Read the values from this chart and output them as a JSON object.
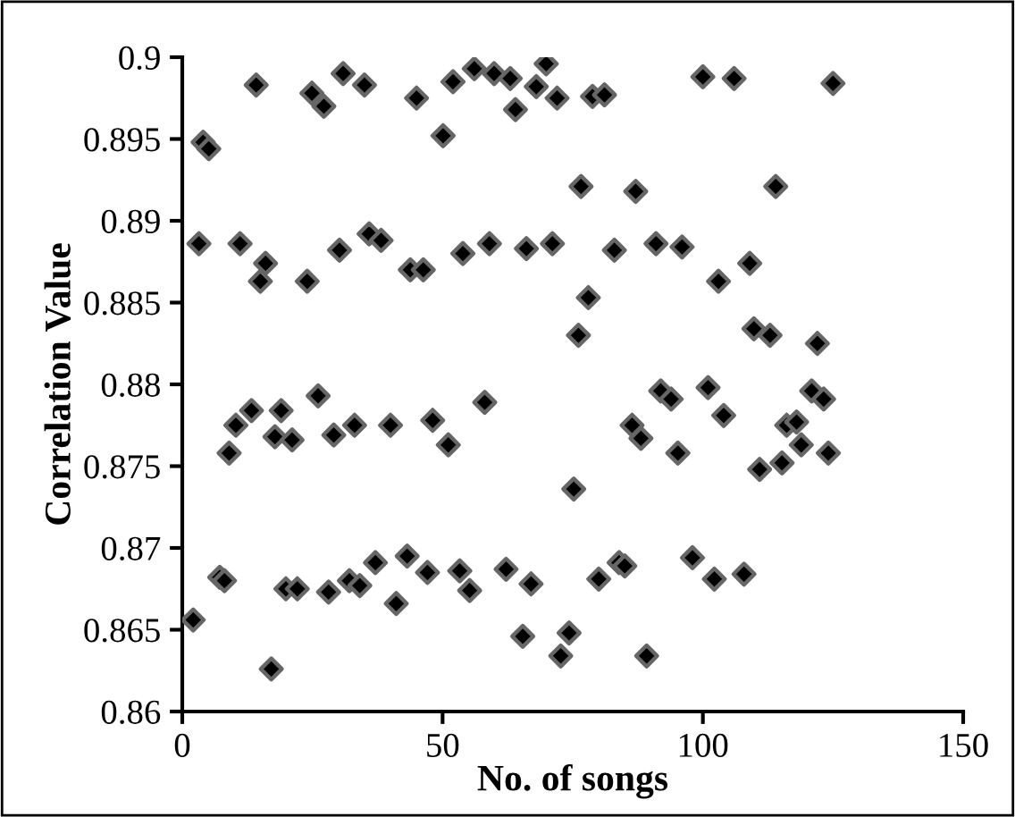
{
  "chart_data": {
    "type": "scatter",
    "xlabel": "No. of songs",
    "ylabel": "Correlation Value",
    "xlim": [
      0,
      150
    ],
    "xticks": [
      0,
      50,
      100,
      150
    ],
    "ylim": [
      0.86,
      0.9
    ],
    "yticks": [
      0.86,
      0.865,
      0.87,
      0.875,
      0.88,
      0.885,
      0.89,
      0.895,
      0.9
    ],
    "grid": false,
    "legend": false,
    "marker": "diamond",
    "series": [
      {
        "color": "#000000",
        "x": [
          4.0,
          5.1,
          14.2,
          24.9,
          27.2,
          30.9,
          35.0,
          45.0,
          50.1,
          52.0,
          56.1,
          59.9,
          63.0,
          64.0,
          68.0,
          69.9,
          72.0,
          78.8,
          81.1,
          100.0,
          106.0,
          125.0,
          3.2,
          11.1,
          16.0,
          15.0,
          24.0,
          30.2,
          35.9,
          38.2,
          43.8,
          46.3,
          53.9,
          59.0,
          66.1,
          71.1,
          76.6,
          87.1,
          114.0,
          83.0,
          91.0,
          96.0,
          109.0,
          103.0,
          78.0,
          76.1,
          109.8,
          112.9,
          122.0,
          26.1,
          13.3,
          19.0,
          58.1,
          91.9,
          93.9,
          101.0,
          120.9,
          123.2,
          104.0,
          10.3,
          9.0,
          17.8,
          21.1,
          29.1,
          33.1,
          40.0,
          48.1,
          51.1,
          75.2,
          86.4,
          88.1,
          95.2,
          116.1,
          118.0,
          118.9,
          110.9,
          115.2,
          124.1,
          2.1,
          7.2,
          8.1,
          19.9,
          22.1,
          28.1,
          32.1,
          34.1,
          37.1,
          41.1,
          43.2,
          47.1,
          53.3,
          55.2,
          62.2,
          67.0,
          65.4,
          72.7,
          74.3,
          17.1,
          80.0,
          83.9,
          85.0,
          98.0,
          102.2,
          107.9,
          89.2
        ],
        "values": [
          0.8948,
          0.8944,
          0.8983,
          0.8978,
          0.897,
          0.899,
          0.8983,
          0.8975,
          0.8952,
          0.8985,
          0.8993,
          0.899,
          0.8987,
          0.8968,
          0.8982,
          0.8996,
          0.8975,
          0.8976,
          0.8977,
          0.8988,
          0.8987,
          0.8984,
          0.8886,
          0.8886,
          0.8874,
          0.8863,
          0.8863,
          0.8882,
          0.8892,
          0.8888,
          0.887,
          0.887,
          0.888,
          0.8886,
          0.8883,
          0.8886,
          0.8921,
          0.8918,
          0.8921,
          0.8882,
          0.8886,
          0.8884,
          0.8874,
          0.8863,
          0.8853,
          0.883,
          0.8834,
          0.883,
          0.8825,
          0.8793,
          0.8784,
          0.8784,
          0.8789,
          0.8796,
          0.8791,
          0.8798,
          0.8796,
          0.8791,
          0.8781,
          0.8775,
          0.8758,
          0.8768,
          0.8766,
          0.8769,
          0.8775,
          0.8775,
          0.8778,
          0.8763,
          0.8736,
          0.8775,
          0.8767,
          0.8758,
          0.8775,
          0.8777,
          0.8763,
          0.8748,
          0.8752,
          0.8758,
          0.8656,
          0.8682,
          0.868,
          0.8675,
          0.8675,
          0.8673,
          0.868,
          0.8677,
          0.8691,
          0.8666,
          0.8695,
          0.8685,
          0.8686,
          0.8674,
          0.8687,
          0.8678,
          0.8646,
          0.8634,
          0.8648,
          0.8626,
          0.8681,
          0.8691,
          0.8689,
          0.8694,
          0.8681,
          0.8684,
          0.8634
        ]
      }
    ]
  }
}
